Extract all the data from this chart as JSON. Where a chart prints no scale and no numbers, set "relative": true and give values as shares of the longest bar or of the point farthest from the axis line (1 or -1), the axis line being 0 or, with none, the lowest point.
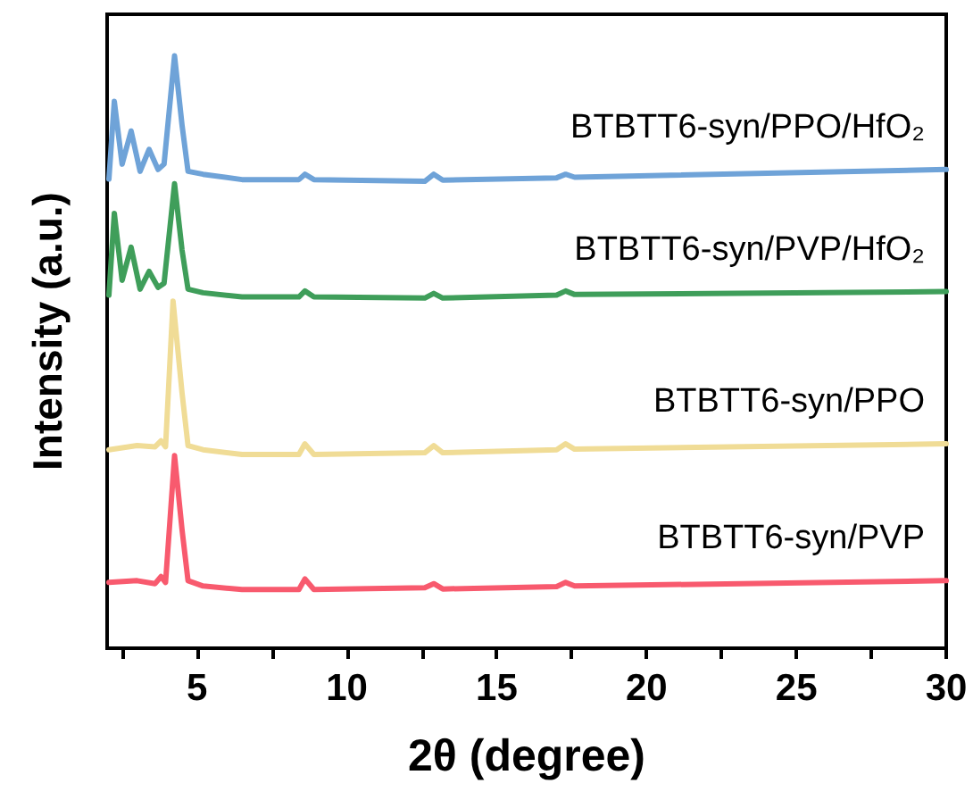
{
  "chart_data": {
    "type": "line",
    "relative": true,
    "xlabel": "2θ (degree)",
    "ylabel": "Intensity (a.u.)",
    "xlim": [
      2,
      30
    ],
    "xticks": [
      {
        "value": 2.5,
        "label": null
      },
      5,
      {
        "value": 7.5,
        "label": null
      },
      10,
      {
        "value": 12.5,
        "label": null
      },
      15,
      {
        "value": 17.5,
        "label": null
      },
      20,
      {
        "value": 22.5,
        "label": null
      },
      25,
      {
        "value": 27.5,
        "label": null
      },
      30
    ],
    "grid": false,
    "legend": false,
    "marker": "none",
    "line_style": "solid",
    "series": [
      {
        "name": "BTBTT6-syn/PPO/HfO₂",
        "color": "#6fa3d8",
        "x": [
          2.06,
          2.24,
          2.5,
          2.8,
          3.1,
          3.4,
          3.7,
          3.9,
          4.25,
          4.5,
          4.7,
          5.2,
          6.5,
          8.4,
          8.6,
          8.9,
          12.6,
          12.9,
          13.2,
          17.0,
          17.3,
          17.6,
          30
        ],
        "values": [
          0.792,
          0.923,
          0.817,
          0.873,
          0.805,
          0.842,
          0.808,
          0.817,
          1.0,
          0.883,
          0.805,
          0.8,
          0.791,
          0.791,
          0.8,
          0.791,
          0.788,
          0.8,
          0.79,
          0.794,
          0.8,
          0.795,
          0.808
        ]
      },
      {
        "name": "BTBTT6-syn/PVP/HfO₂",
        "color": "#3f9e5a",
        "x": [
          2.06,
          2.24,
          2.5,
          2.8,
          3.1,
          3.4,
          3.7,
          3.9,
          4.25,
          4.5,
          4.7,
          5.2,
          6.5,
          8.4,
          8.6,
          8.9,
          12.6,
          12.9,
          13.2,
          17.0,
          17.3,
          17.6,
          30
        ],
        "values": [
          0.596,
          0.734,
          0.621,
          0.677,
          0.606,
          0.636,
          0.609,
          0.616,
          0.784,
          0.672,
          0.606,
          0.6,
          0.593,
          0.593,
          0.603,
          0.593,
          0.591,
          0.599,
          0.591,
          0.596,
          0.603,
          0.597,
          0.602
        ]
      },
      {
        "name": "BTBTT6-syn/PPO",
        "color": "#f0dc96",
        "x": [
          2.06,
          3.0,
          3.6,
          3.8,
          3.95,
          4.2,
          4.5,
          4.7,
          5.2,
          6.5,
          8.4,
          8.6,
          8.9,
          12.6,
          12.9,
          13.2,
          17.0,
          17.3,
          17.6,
          30
        ],
        "values": [
          0.335,
          0.342,
          0.34,
          0.35,
          0.34,
          0.586,
          0.431,
          0.342,
          0.335,
          0.327,
          0.327,
          0.345,
          0.327,
          0.33,
          0.342,
          0.33,
          0.335,
          0.345,
          0.336,
          0.345
        ]
      },
      {
        "name": "BTBTT6-syn/PVP",
        "color": "#f85a6e",
        "x": [
          2.06,
          3.0,
          3.6,
          3.8,
          3.95,
          4.25,
          4.5,
          4.7,
          5.2,
          6.5,
          8.4,
          8.6,
          8.9,
          12.6,
          12.9,
          13.2,
          17.0,
          17.3,
          17.6,
          30
        ],
        "values": [
          0.111,
          0.114,
          0.109,
          0.121,
          0.111,
          0.325,
          0.2,
          0.114,
          0.105,
          0.099,
          0.099,
          0.117,
          0.099,
          0.102,
          0.109,
          0.1,
          0.104,
          0.111,
          0.105,
          0.114
        ]
      }
    ]
  }
}
